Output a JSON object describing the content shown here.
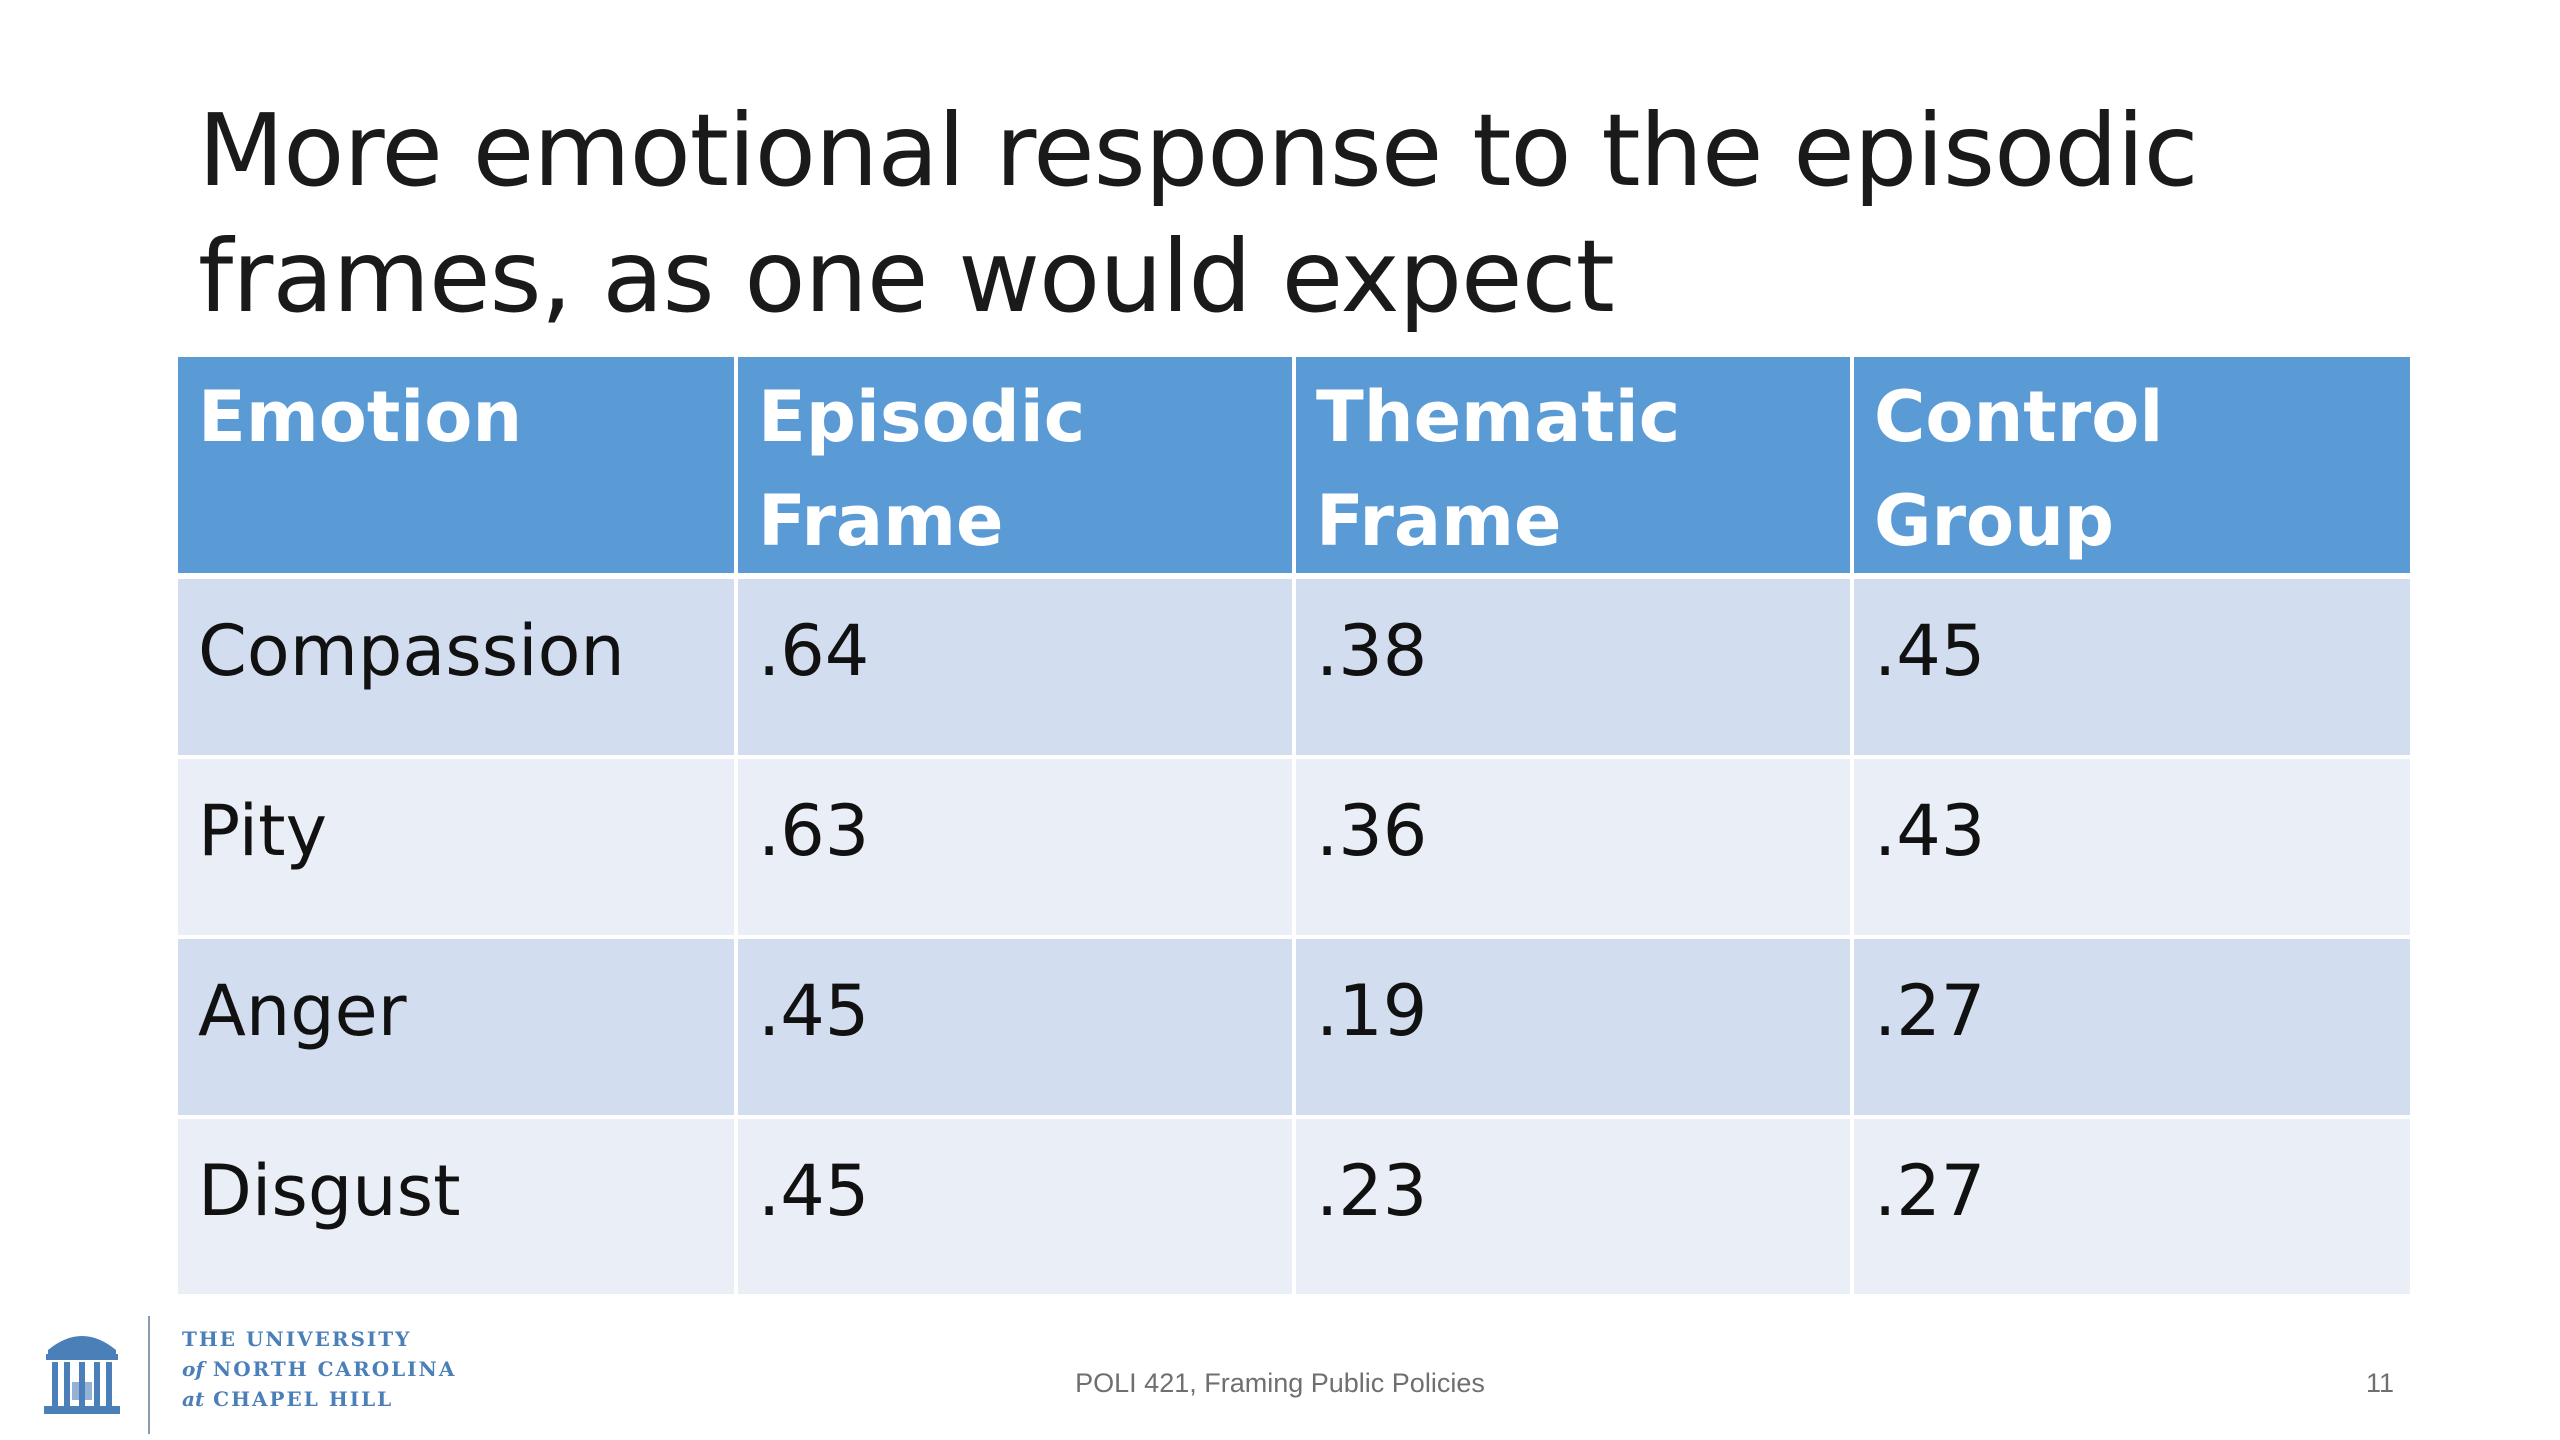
{
  "slide": {
    "title_lines": [
      "More emotional response to the episodic",
      "frames, as one would expect"
    ],
    "table": {
      "headers": [
        [
          "Emotion"
        ],
        [
          "Episodic",
          "Frame"
        ],
        [
          "Thematic",
          "Frame"
        ],
        [
          "Control Group"
        ]
      ],
      "rows": [
        [
          "Compassion",
          ".64",
          ".38",
          ".45"
        ],
        [
          "Pity",
          ".63",
          ".36",
          ".43"
        ],
        [
          "Anger",
          ".45",
          ".19",
          ".27"
        ],
        [
          "Disgust",
          ".45",
          ".23",
          ".27"
        ]
      ]
    },
    "footer": {
      "logo_lines": [
        "THE UNIVERSITY",
        "NORTH CAROLINA",
        "CHAPEL HILL"
      ],
      "logo_prefixes": [
        "of",
        "at"
      ],
      "course": "POLI 421, Framing Public Policies",
      "slide_number": "11"
    },
    "colors": {
      "header_bg": "#5b9bd5",
      "row_odd": "#d2deef",
      "row_even": "#eaeff7",
      "logo_blue": "#4b7fb8"
    }
  }
}
